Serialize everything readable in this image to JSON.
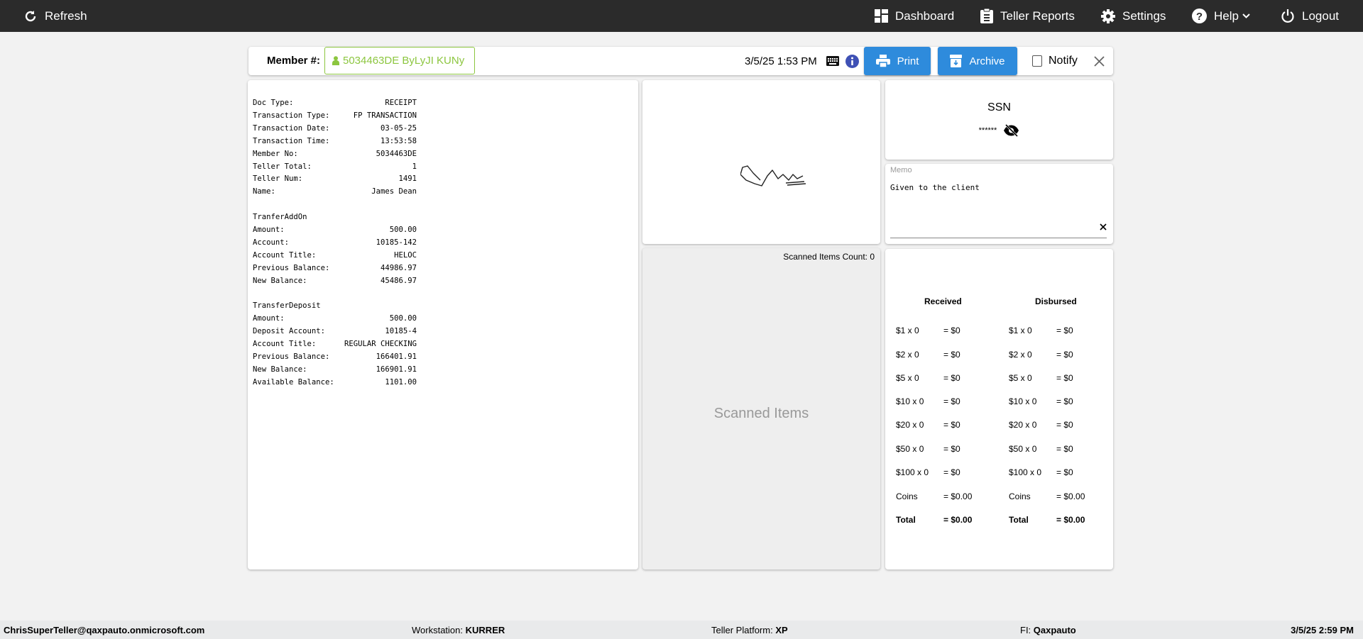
{
  "topbar": {
    "refresh": "Refresh",
    "dashboard": "Dashboard",
    "teller_reports": "Teller Reports",
    "settings": "Settings",
    "help": "Help",
    "logout": "Logout"
  },
  "header": {
    "member_label": "Member #:",
    "member_value": "5034463DE ByLyJI KUNy",
    "datetime": "3/5/25 1:53 PM",
    "print": "Print",
    "archive": "Archive",
    "notify": "Notify",
    "notify_checked": false,
    "accent": "#2e8bdc",
    "member_color": "#8cc63f"
  },
  "receipt": {
    "lines": [
      {
        "k": "Doc Type:",
        "v": "RECEIPT"
      },
      {
        "k": "Transaction Type:",
        "v": "FP TRANSACTION"
      },
      {
        "k": "Transaction Date:",
        "v": "03-05-25"
      },
      {
        "k": "Transaction Time:",
        "v": "13:53:58"
      },
      {
        "k": "Member No:",
        "v": "5034463DE"
      },
      {
        "k": "Teller Total:",
        "v": "1"
      },
      {
        "k": "Teller Num:",
        "v": "1491"
      },
      {
        "k": "Name:",
        "v": "James Dean"
      },
      {
        "k": "",
        "v": ""
      },
      {
        "k": "TranferAddOn",
        "v": ""
      },
      {
        "k": "Amount:",
        "v": "500.00"
      },
      {
        "k": "Account:",
        "v": "10185-142"
      },
      {
        "k": "Account Title:",
        "v": "HELOC"
      },
      {
        "k": "Previous Balance:",
        "v": "44986.97"
      },
      {
        "k": "New Balance:",
        "v": "45486.97"
      },
      {
        "k": "",
        "v": ""
      },
      {
        "k": "TransferDeposit",
        "v": ""
      },
      {
        "k": "Amount:",
        "v": "500.00"
      },
      {
        "k": "Deposit Account:",
        "v": "10185-4"
      },
      {
        "k": "Account Title:",
        "v": "REGULAR CHECKING"
      },
      {
        "k": "Previous Balance:",
        "v": "166401.91"
      },
      {
        "k": "New Balance:",
        "v": "166901.91"
      },
      {
        "k": "Available Balance:",
        "v": "1101.00"
      }
    ]
  },
  "scanned": {
    "count_label": "Scanned Items Count: 0",
    "placeholder": "Scanned Items"
  },
  "ssn": {
    "title": "SSN",
    "masked": "******"
  },
  "memo": {
    "label": "Memo",
    "value": "Given to the client"
  },
  "cash": {
    "received_title": "Received",
    "disbursed_title": "Disbursed",
    "rows": [
      {
        "label": "$1 x 0",
        "value": "= $0"
      },
      {
        "label": "$2 x 0",
        "value": "= $0"
      },
      {
        "label": "$5 x 0",
        "value": "= $0"
      },
      {
        "label": "$10 x 0",
        "value": "= $0"
      },
      {
        "label": "$20 x 0",
        "value": "= $0"
      },
      {
        "label": "$50 x 0",
        "value": "= $0"
      },
      {
        "label": "$100 x 0",
        "value": "= $0"
      },
      {
        "label": "Coins",
        "value": "= $0.00"
      },
      {
        "label": "Total",
        "value": "= $0.00"
      }
    ],
    "disbursed_rows": [
      {
        "label": "$1 x 0",
        "value": "= $0"
      },
      {
        "label": "$2 x 0",
        "value": "= $0"
      },
      {
        "label": "$5 x 0",
        "value": "= $0"
      },
      {
        "label": "$10 x 0",
        "value": "= $0"
      },
      {
        "label": "$20 x 0",
        "value": "= $0"
      },
      {
        "label": "$50 x 0",
        "value": "= $0"
      },
      {
        "label": "$100 x 0",
        "value": "= $0"
      },
      {
        "label": "Coins",
        "value": "= $0.00"
      },
      {
        "label": "Total",
        "value": "= $0.00"
      }
    ]
  },
  "footer": {
    "user": "ChrisSuperTeller@qaxpauto.onmicrosoft.com",
    "workstation_label": "Workstation:",
    "workstation": "KURRER",
    "platform_label": "Teller Platform:",
    "platform": "XP",
    "fi_label": "FI:",
    "fi": "Qaxpauto",
    "datetime": "3/5/25 2:59 PM"
  }
}
